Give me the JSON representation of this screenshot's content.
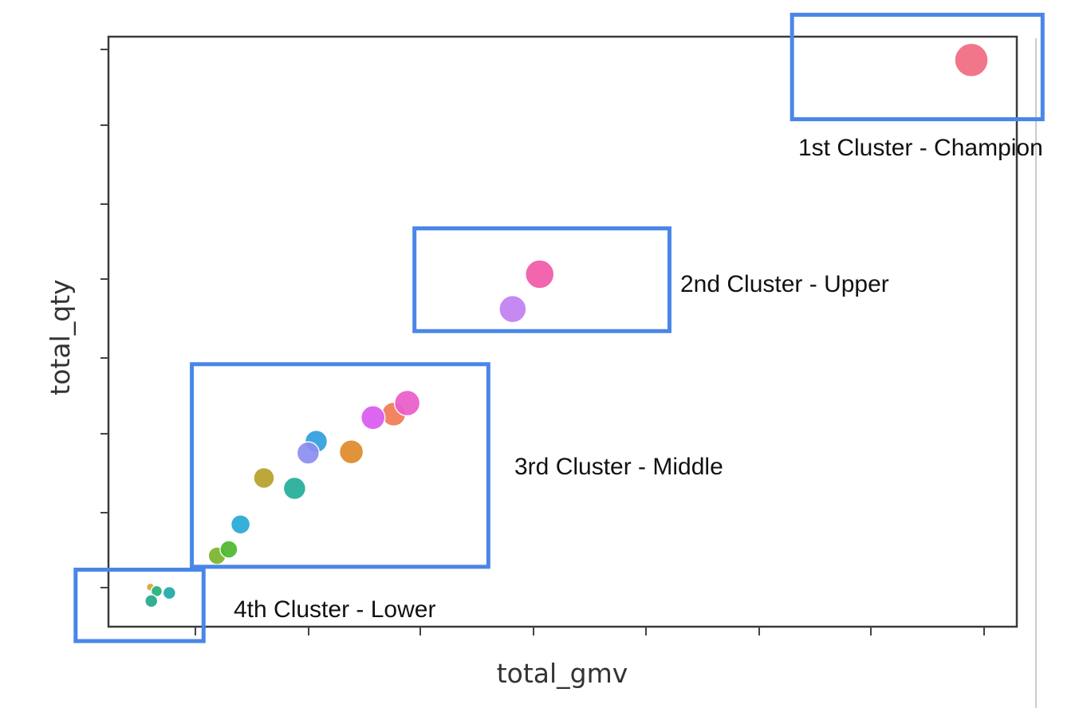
{
  "chart_data": {
    "type": "scatter",
    "xlabel": "total_gmv",
    "ylabel": "total_qty",
    "xlim": [
      0,
      100
    ],
    "ylim": [
      0,
      100
    ],
    "grid": false,
    "tick_labels_shown": false,
    "points": [
      {
        "x": 4.3,
        "y": 6.0,
        "size": 5,
        "color": "#d6a53a"
      },
      {
        "x": 5.0,
        "y": 5.3,
        "size": 7,
        "color": "#22b07a"
      },
      {
        "x": 6.4,
        "y": 5.0,
        "size": 8,
        "color": "#20a8a8"
      },
      {
        "x": 4.4,
        "y": 3.6,
        "size": 8,
        "color": "#26a88a"
      },
      {
        "x": 11.7,
        "y": 11.4,
        "size": 11,
        "color": "#7ab42c"
      },
      {
        "x": 13.0,
        "y": 12.5,
        "size": 11,
        "color": "#4db82e"
      },
      {
        "x": 14.3,
        "y": 16.8,
        "size": 12,
        "color": "#26a9d6"
      },
      {
        "x": 16.9,
        "y": 24.8,
        "size": 13,
        "color": "#b7a12a"
      },
      {
        "x": 20.3,
        "y": 23.0,
        "size": 14,
        "color": "#23ad9c"
      },
      {
        "x": 22.7,
        "y": 31.1,
        "size": 14,
        "color": "#2f9fe0"
      },
      {
        "x": 21.8,
        "y": 29.1,
        "size": 14,
        "color": "#8d8ef0"
      },
      {
        "x": 26.6,
        "y": 29.3,
        "size": 15,
        "color": "#df8a2b"
      },
      {
        "x": 31.3,
        "y": 35.8,
        "size": 15,
        "color": "#f07b55"
      },
      {
        "x": 29.0,
        "y": 35.2,
        "size": 15,
        "color": "#d85bf0"
      },
      {
        "x": 32.8,
        "y": 37.7,
        "size": 16,
        "color": "#ea5ccb"
      },
      {
        "x": 44.5,
        "y": 53.9,
        "size": 17,
        "color": "#c27ef0"
      },
      {
        "x": 47.5,
        "y": 59.9,
        "size": 18,
        "color": "#f05aa8"
      },
      {
        "x": 95.4,
        "y": 96.8,
        "size": 21,
        "color": "#f06b80"
      }
    ],
    "annotations": [
      {
        "text": "1st Cluster - Champion",
        "xlim": [
          75.5,
          103.3
        ],
        "ylim": [
          86.6,
          104.6
        ]
      },
      {
        "text": "2nd Cluster - Upper",
        "xlim": [
          33.6,
          61.9
        ],
        "ylim": [
          50.1,
          67.8
        ]
      },
      {
        "text": "3rd Cluster - Middle",
        "xlim": [
          8.9,
          41.8
        ],
        "ylim": [
          9.5,
          44.4
        ]
      },
      {
        "text": "4th Cluster - Lower",
        "xlim": [
          -4.0,
          10.2
        ],
        "ylim": [
          -3.3,
          9.0
        ]
      }
    ],
    "annotation_box_color": "#4a86e8"
  }
}
